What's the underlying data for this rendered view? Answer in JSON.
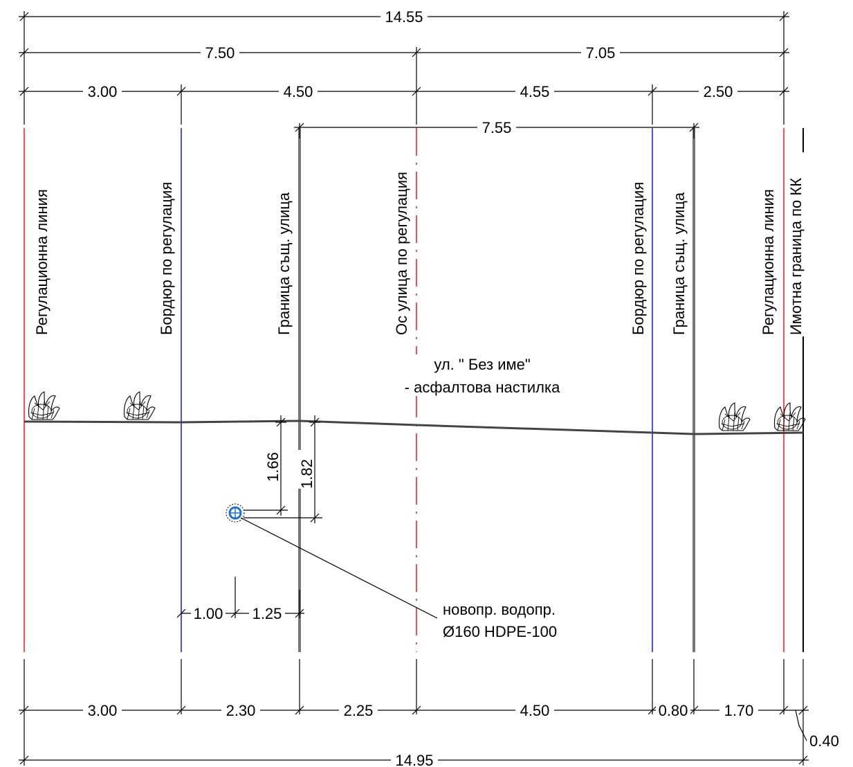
{
  "dimensions": {
    "top_total": "14.55",
    "top_left_half": "7.50",
    "top_right_half": "7.05",
    "top_seg_1": "3.00",
    "top_seg_2": "4.50",
    "top_seg_3": "4.55",
    "top_seg_4": "2.50",
    "existing_street_width": "7.55",
    "depth_1": "1.66",
    "depth_2": "1.82",
    "offset_1": "1.00",
    "offset_2": "1.25",
    "bottom_seg_1": "3.00",
    "bottom_seg_2": "2.30",
    "bottom_seg_3": "2.25",
    "bottom_seg_4": "4.50",
    "bottom_seg_5": "0.80",
    "bottom_seg_6": "1.70",
    "bottom_seg_7": "0.40",
    "bottom_total": "14.95"
  },
  "line_labels": {
    "regulation_line_left": "Регулационна линия",
    "curb_left": "Бордюр по регулация",
    "existing_street_boundary_left": "Граница същ. улица",
    "street_axis": "Ос улица по регулация",
    "curb_right": "Бордюр по регулация",
    "existing_street_boundary_right": "Граница същ. улица",
    "regulation_line_right": "Регулационна линия",
    "property_boundary": "Имотна граница по КК"
  },
  "street": {
    "name": "ул. \" Без име\"",
    "surface": "- асфалтова настилка"
  },
  "pipe": {
    "line1": "новопр. водопр.",
    "line2": "Ø160 HDPE-100"
  },
  "colors": {
    "regulation_line": "#ff0000",
    "curb": "#0000ff",
    "street_axis": "#ff0000",
    "existing_boundary": "#777777",
    "pipe": "#1e6fd9"
  }
}
